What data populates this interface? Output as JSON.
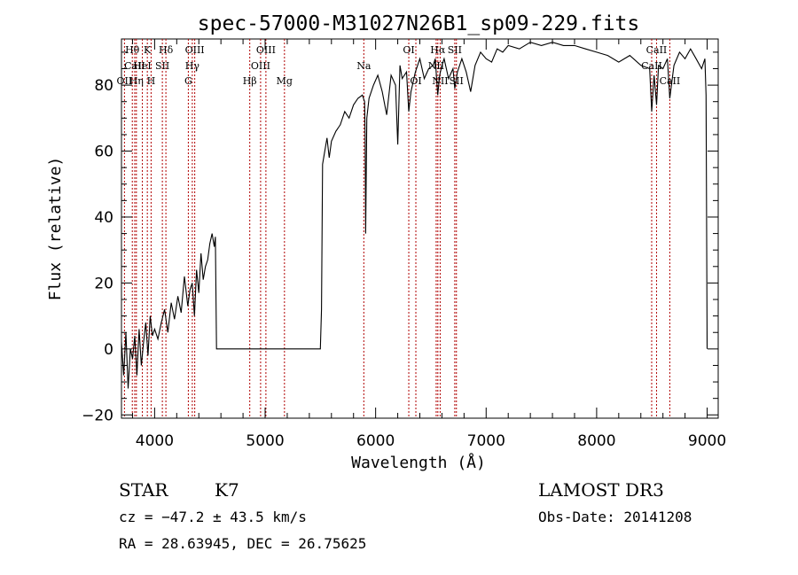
{
  "chart_data": {
    "type": "line",
    "title": "spec-57000-M31027N26B1_sp09-229.fits",
    "xlabel": "Wavelength (Å)",
    "ylabel": "Flux (relative)",
    "xlim": [
      3700,
      9100
    ],
    "ylim": [
      -21,
      94
    ],
    "x_ticks": [
      4000,
      5000,
      6000,
      7000,
      8000,
      9000
    ],
    "y_ticks": [
      -20,
      0,
      20,
      40,
      60,
      80
    ],
    "grid": false,
    "series": [
      {
        "x": [
          3700,
          3720,
          3740,
          3760,
          3780,
          3800,
          3820,
          3840,
          3860,
          3880,
          3900,
          3920,
          3940,
          3960,
          3980,
          4000,
          4030,
          4060,
          4090,
          4120,
          4150,
          4180,
          4210,
          4240,
          4270,
          4300,
          4320,
          4340,
          4360,
          4380,
          4400,
          4420,
          4440,
          4460,
          4480,
          4500,
          4520,
          4540,
          4550,
          4560,
          5000,
          5500,
          5510,
          5520,
          5540,
          5560,
          5580,
          5600,
          5640,
          5680,
          5720,
          5760,
          5800,
          5840,
          5880,
          5900,
          5905,
          5910,
          5920,
          5940,
          5980,
          6020,
          6060,
          6100,
          6140,
          6180,
          6200,
          6220,
          6240,
          6280,
          6300,
          6320,
          6360,
          6400,
          6440,
          6480,
          6520,
          6540,
          6562,
          6580,
          6600,
          6620,
          6660,
          6700,
          6716,
          6740,
          6780,
          6820,
          6860,
          6900,
          6950,
          7000,
          7050,
          7100,
          7150,
          7200,
          7300,
          7400,
          7500,
          7600,
          7700,
          7800,
          7900,
          8000,
          8100,
          8200,
          8300,
          8400,
          8480,
          8498,
          8520,
          8542,
          8560,
          8600,
          8640,
          8662,
          8700,
          8750,
          8800,
          8850,
          8900,
          8950,
          8980,
          8990,
          8995,
          9000
        ],
        "y": [
          2,
          -8,
          5,
          -12,
          0,
          -3,
          4,
          -8,
          6,
          -5,
          2,
          8,
          -2,
          10,
          4,
          6,
          3,
          8,
          12,
          5,
          14,
          9,
          16,
          11,
          22,
          13,
          18,
          20,
          10,
          24,
          17,
          29,
          21,
          25,
          27,
          32,
          35,
          31,
          34,
          0,
          0,
          0,
          12,
          56,
          60,
          64,
          58,
          63,
          66,
          68,
          72,
          70,
          74,
          76,
          77,
          75,
          65,
          35,
          70,
          76,
          80,
          83,
          78,
          71,
          83,
          80,
          62,
          86,
          82,
          84,
          72,
          78,
          84,
          88,
          82,
          85,
          86,
          88,
          77,
          83,
          86,
          88,
          82,
          85,
          79,
          84,
          88,
          84,
          78,
          86,
          90,
          88,
          87,
          91,
          90,
          92,
          91,
          93,
          92,
          93,
          92,
          92,
          91,
          90,
          89,
          87,
          89,
          86,
          85,
          72,
          83,
          74,
          86,
          85,
          88,
          76,
          86,
          90,
          88,
          91,
          88,
          85,
          88,
          77,
          40,
          0
        ]
      }
    ],
    "line_markers": [
      {
        "label": "Hθ",
        "x": 3798,
        "row": 0
      },
      {
        "label": "CaII",
        "x": 3820,
        "row": 1
      },
      {
        "label": "OII",
        "x": 3727,
        "row": 2
      },
      {
        "label": "Hη",
        "x": 3835,
        "row": 2
      },
      {
        "label": "HeI",
        "x": 3889,
        "row": 1
      },
      {
        "label": "K",
        "x": 3934,
        "row": 0
      },
      {
        "label": "H",
        "x": 3968,
        "row": 2
      },
      {
        "label": "SII",
        "x": 4070,
        "row": 1
      },
      {
        "label": "Hδ",
        "x": 4102,
        "row": 0
      },
      {
        "label": "OIII",
        "x": 4363,
        "row": 0
      },
      {
        "label": "Hγ",
        "x": 4341,
        "row": 1
      },
      {
        "label": "G",
        "x": 4305,
        "row": 2
      },
      {
        "label": "Hβ",
        "x": 4861,
        "row": 2
      },
      {
        "label": "OIII",
        "x": 5007,
        "row": 0
      },
      {
        "label": "OIII",
        "x": 4959,
        "row": 1
      },
      {
        "label": "Mg",
        "x": 5175,
        "row": 2
      },
      {
        "label": "Na",
        "x": 5893,
        "row": 1
      },
      {
        "label": "OI",
        "x": 6300,
        "row": 0
      },
      {
        "label": "OI",
        "x": 6364,
        "row": 2
      },
      {
        "label": "Hα",
        "x": 6563,
        "row": 0
      },
      {
        "label": "NII",
        "x": 6548,
        "row": 1
      },
      {
        "label": "NII",
        "x": 6584,
        "row": 2
      },
      {
        "label": "SII",
        "x": 6716,
        "row": 0
      },
      {
        "label": "SII",
        "x": 6731,
        "row": 2
      },
      {
        "label": "CaII",
        "x": 8542,
        "row": 0
      },
      {
        "label": "CaII",
        "x": 8498,
        "row": 1
      },
      {
        "label": "CaII",
        "x": 8662,
        "row": 2
      }
    ]
  },
  "info": {
    "class": "STAR",
    "subclass": "K7",
    "survey": "LAMOST DR3",
    "redshift": "cz = −47.2 ± 43.5 km/s",
    "obs_date": "Obs-Date: 20141208",
    "coords": "RA =  28.63945, DEC =  26.75625"
  }
}
